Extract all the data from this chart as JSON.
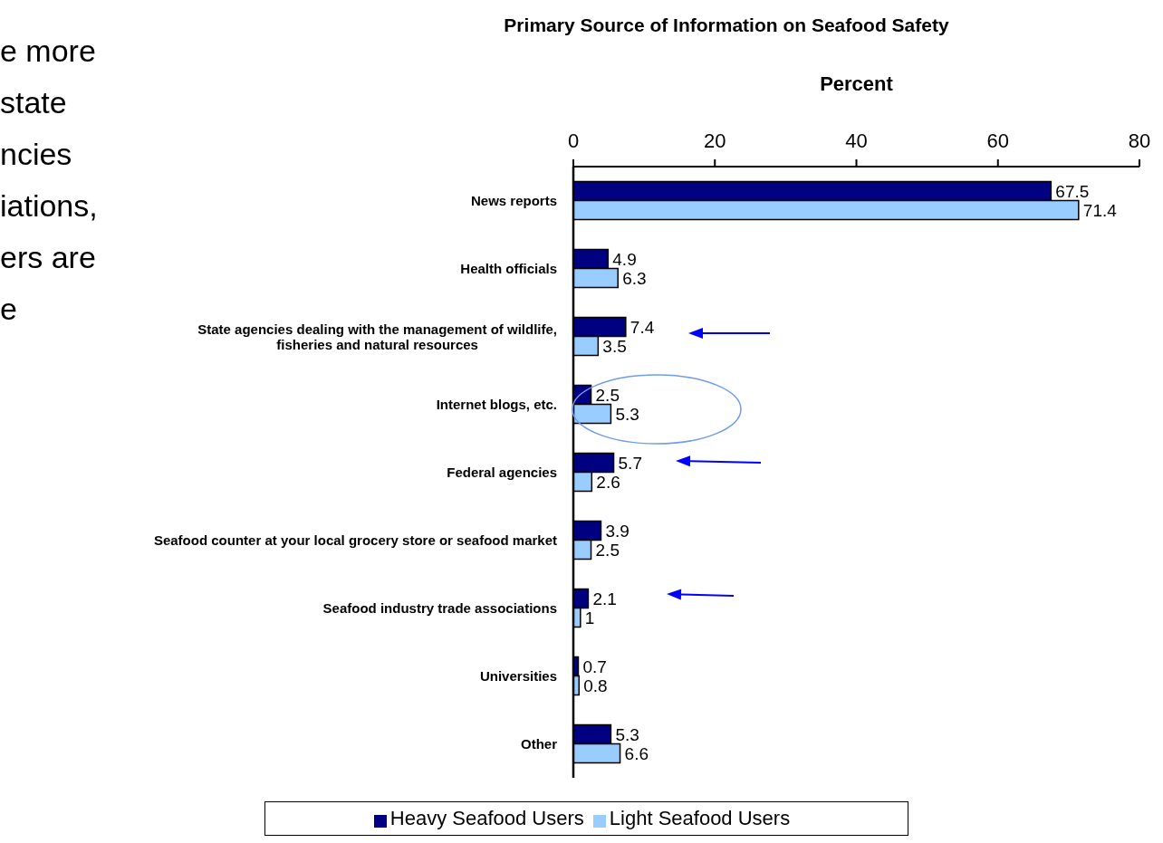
{
  "chart_data": {
    "type": "bar",
    "orientation": "horizontal",
    "title": "Primary Source of Information on Seafood Safety",
    "xlabel": "Percent",
    "categories": [
      "News reports",
      "Health officials",
      "State agencies dealing with the management of wildlife, fisheries and natural resources",
      "Internet blogs, etc.",
      "Federal agencies",
      "Seafood counter at your local grocery store or seafood market",
      "Seafood industry trade associations",
      "Universities",
      "Other"
    ],
    "series": [
      {
        "name": "Heavy Seafood Users",
        "color": "#000080",
        "values": [
          67.5,
          4.9,
          7.4,
          2.5,
          5.7,
          3.9,
          2.1,
          0.7,
          5.3
        ]
      },
      {
        "name": "Light Seafood Users",
        "color": "#99ccff",
        "values": [
          71.4,
          6.3,
          3.5,
          5.3,
          2.6,
          2.5,
          1,
          0.8,
          6.6
        ]
      }
    ],
    "xlim": [
      0,
      80
    ],
    "xticks": [
      0,
      20,
      40,
      60,
      80
    ],
    "data_labels": true,
    "legend": "bottom",
    "annotations": [
      "e more",
      "state",
      "ncies",
      "iations,",
      "ers are",
      "e"
    ]
  }
}
